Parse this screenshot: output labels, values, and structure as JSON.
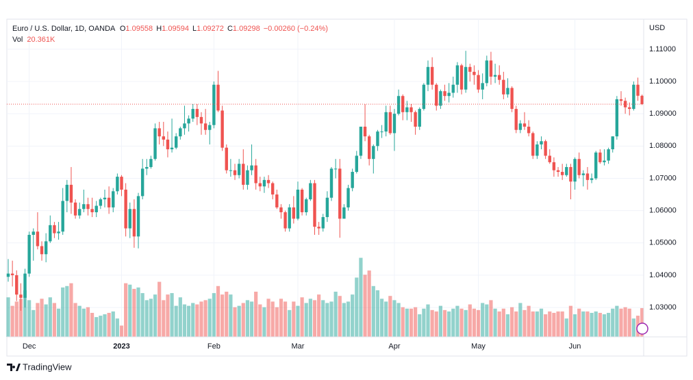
{
  "chart_data": {
    "type": "candlestick",
    "title": "Euro / U.S. Dollar, 1D, OANDA",
    "ohlc_labels": [
      "O",
      "H",
      "L",
      "C"
    ],
    "change_label": "−0.00260 (−0.24%)",
    "volume_title": "Vol",
    "volume_label": "20.361K",
    "currency": "USD",
    "brand": "TradingView",
    "up_color": "#26a69a",
    "down_color": "#ef5350",
    "grid": true,
    "ylim": [
      1.0209,
      1.1193
    ],
    "yticks": [
      {
        "value": 1.03,
        "label": "1.03000"
      },
      {
        "value": 1.04,
        "label": "1.04000"
      },
      {
        "value": 1.05,
        "label": "1.05000"
      },
      {
        "value": 1.06,
        "label": "1.06000"
      },
      {
        "value": 1.07,
        "label": "1.07000"
      },
      {
        "value": 1.08,
        "label": "1.08000"
      },
      {
        "value": 1.09,
        "label": "1.09000"
      },
      {
        "value": 1.1,
        "label": "1.10000"
      },
      {
        "value": 1.11,
        "label": "1.11000"
      }
    ],
    "categories": [
      null,
      null,
      null,
      null,
      null,
      "Dec",
      null,
      null,
      null,
      null,
      null,
      null,
      null,
      null,
      null,
      null,
      null,
      null,
      null,
      null,
      null,
      null,
      null,
      null,
      null,
      null,
      null,
      "2023",
      null,
      null,
      null,
      null,
      null,
      null,
      null,
      null,
      null,
      null,
      null,
      null,
      null,
      null,
      null,
      null,
      null,
      null,
      null,
      null,
      null,
      "Feb",
      null,
      null,
      null,
      null,
      null,
      null,
      null,
      null,
      null,
      null,
      null,
      null,
      null,
      null,
      null,
      null,
      null,
      null,
      null,
      "Mar",
      null,
      null,
      null,
      null,
      null,
      null,
      null,
      null,
      null,
      null,
      null,
      null,
      null,
      null,
      null,
      null,
      null,
      null,
      null,
      null,
      null,
      null,
      "Apr",
      null,
      null,
      null,
      null,
      null,
      null,
      null,
      null,
      null,
      null,
      null,
      null,
      null,
      null,
      null,
      null,
      null,
      null,
      null,
      "May",
      null,
      null,
      null,
      null,
      null,
      null,
      null,
      null,
      null,
      null,
      null,
      null,
      null,
      null,
      null,
      null,
      null,
      null,
      null,
      null,
      null,
      null,
      "Jun",
      null,
      null,
      null,
      null,
      null,
      null,
      null,
      null,
      null,
      null,
      null,
      null,
      null,
      null,
      null,
      null
    ],
    "open": [
      1.0395,
      1.0405,
      1.04,
      1.034,
      1.033,
      1.0405,
      1.0525,
      1.0535,
      1.049,
      1.0465,
      1.0505,
      1.0555,
      1.053,
      1.0535,
      1.063,
      1.068,
      1.0625,
      1.0585,
      1.0605,
      1.062,
      1.0605,
      1.0595,
      1.0615,
      1.0635,
      1.064,
      1.061,
      1.066,
      1.0705,
      1.0665,
      1.0545,
      1.0605,
      1.052,
      1.0645,
      1.073,
      1.0735,
      1.076,
      1.0855,
      1.083,
      1.082,
      1.079,
      1.0795,
      1.083,
      1.0855,
      1.087,
      1.0885,
      1.0915,
      1.089,
      1.087,
      1.085,
      1.0865,
      1.099,
      1.091,
      1.0795,
      1.0725,
      1.0725,
      1.071,
      1.0745,
      1.068,
      1.0725,
      1.074,
      1.0685,
      1.0675,
      1.0695,
      1.0685,
      1.065,
      1.061,
      1.0595,
      1.0545,
      1.061,
      1.0575,
      1.0665,
      1.0595,
      1.0635,
      1.0685,
      1.055,
      1.0545,
      1.058,
      1.064,
      1.073,
      1.073,
      1.0575,
      1.061,
      1.067,
      1.072,
      1.077,
      1.086,
      1.083,
      1.076,
      1.08,
      1.0845,
      1.0845,
      1.0905,
      1.084,
      1.09,
      1.0955,
      1.0905,
      1.092,
      1.0905,
      1.086,
      1.0915,
      1.099,
      1.1045,
      1.099,
      1.0925,
      1.097,
      1.0955,
      1.0965,
      1.099,
      1.105,
      1.0975,
      1.1045,
      1.103,
      1.102,
      1.0975,
      1.0995,
      1.1065,
      1.1015,
      1.102,
      1.1005,
      1.096,
      1.098,
      1.0915,
      1.085,
      1.087,
      1.086,
      1.084,
      1.077,
      1.0805,
      1.0815,
      1.077,
      1.075,
      1.0725,
      1.072,
      1.071,
      1.0735,
      1.069,
      1.076,
      1.071,
      1.0715,
      1.0695,
      1.07,
      1.078,
      1.075,
      1.0755,
      1.079,
      1.083,
      1.0945,
      1.094,
      1.092,
      1.0915,
      1.099,
      1.09558
    ],
    "high": [
      1.045,
      1.0445,
      1.0415,
      1.0375,
      1.042,
      1.0535,
      1.0545,
      1.0595,
      1.0505,
      1.053,
      1.0585,
      1.0565,
      1.0565,
      1.067,
      1.0695,
      1.0735,
      1.0635,
      1.0625,
      1.0665,
      1.064,
      1.064,
      1.063,
      1.064,
      1.0665,
      1.0675,
      1.067,
      1.0715,
      1.071,
      1.0685,
      1.0625,
      1.0635,
      1.0655,
      1.076,
      1.076,
      1.077,
      1.087,
      1.0875,
      1.0875,
      1.0845,
      1.0885,
      1.084,
      1.086,
      1.0925,
      1.0895,
      1.093,
      1.093,
      1.0905,
      1.0915,
      1.0875,
      1.1,
      1.1033,
      1.0925,
      1.0805,
      1.076,
      1.0745,
      1.076,
      1.079,
      1.074,
      1.0805,
      1.076,
      1.0705,
      1.0705,
      1.071,
      1.069,
      1.0665,
      1.062,
      1.06,
      1.062,
      1.0645,
      1.069,
      1.067,
      1.064,
      1.0695,
      1.0695,
      1.0565,
      1.059,
      1.066,
      1.0735,
      1.076,
      1.076,
      1.062,
      1.068,
      1.073,
      1.0785,
      1.086,
      1.093,
      1.0835,
      1.0805,
      1.085,
      1.0865,
      1.0925,
      1.0925,
      1.0915,
      1.0975,
      1.096,
      1.094,
      1.093,
      1.091,
      1.092,
      1.0995,
      1.1065,
      1.1075,
      1.0995,
      1.0975,
      1.099,
      1.0995,
      1.1015,
      1.106,
      1.1055,
      1.1095,
      1.1055,
      1.105,
      1.1035,
      1.1025,
      1.108,
      1.1092,
      1.1055,
      1.105,
      1.103,
      1.101,
      1.0985,
      1.0925,
      1.088,
      1.0905,
      1.088,
      1.0845,
      1.0815,
      1.083,
      1.082,
      1.079,
      1.0765,
      1.0735,
      1.0745,
      1.0745,
      1.0745,
      1.0765,
      1.078,
      1.0725,
      1.0735,
      1.0715,
      1.0785,
      1.079,
      1.079,
      1.0795,
      1.083,
      1.0955,
      1.097,
      1.095,
      1.0935,
      1.1,
      1.1012,
      1.09594
    ],
    "low": [
      1.038,
      1.0365,
      1.032,
      1.029,
      1.03,
      1.0395,
      1.0445,
      1.048,
      1.0445,
      1.044,
      1.05,
      1.0515,
      1.051,
      1.0525,
      1.0595,
      1.059,
      1.0575,
      1.0575,
      1.0595,
      1.0585,
      1.058,
      1.058,
      1.0605,
      1.061,
      1.059,
      1.0595,
      1.065,
      1.0645,
      1.052,
      1.0515,
      1.0485,
      1.0483,
      1.0635,
      1.071,
      1.073,
      1.0755,
      1.0805,
      1.08,
      1.0765,
      1.078,
      1.079,
      1.082,
      1.0835,
      1.0845,
      1.0875,
      1.0865,
      1.0835,
      1.0835,
      1.0805,
      1.0855,
      1.0905,
      1.0785,
      1.0715,
      1.0705,
      1.0695,
      1.07,
      1.0665,
      1.0665,
      1.071,
      1.0665,
      1.066,
      1.0655,
      1.067,
      1.0635,
      1.0605,
      1.0575,
      1.0535,
      1.0535,
      1.056,
      1.057,
      1.0585,
      1.0585,
      1.063,
      1.0525,
      1.0525,
      1.0535,
      1.0565,
      1.063,
      1.07,
      1.0516,
      1.0575,
      1.06,
      1.066,
      1.0715,
      1.076,
      1.0815,
      1.074,
      1.0715,
      1.0785,
      1.0825,
      1.083,
      1.0835,
      1.0785,
      1.0895,
      1.088,
      1.088,
      1.0875,
      1.0835,
      1.085,
      1.091,
      1.097,
      1.0975,
      1.091,
      1.0915,
      1.094,
      1.0935,
      1.095,
      1.0965,
      1.096,
      1.0965,
      1.1,
      1.099,
      1.0965,
      1.0945,
      1.0985,
      1.099,
      1.0995,
      1.099,
      1.0945,
      1.095,
      1.0905,
      1.084,
      1.084,
      1.085,
      1.083,
      1.076,
      1.076,
      1.079,
      1.076,
      1.0745,
      1.0705,
      1.0705,
      1.0695,
      1.0705,
      1.0635,
      1.0665,
      1.07,
      1.0675,
      1.0665,
      1.0685,
      1.0695,
      1.0745,
      1.074,
      1.0745,
      1.078,
      1.082,
      1.0925,
      1.09,
      1.0895,
      1.091,
      1.094,
      1.09272
    ],
    "close": [
      1.0405,
      1.04,
      1.034,
      1.033,
      1.0405,
      1.0525,
      1.0535,
      1.049,
      1.0465,
      1.0505,
      1.0555,
      1.053,
      1.0535,
      1.063,
      1.068,
      1.0625,
      1.0585,
      1.0605,
      1.062,
      1.0605,
      1.0595,
      1.0615,
      1.0635,
      1.064,
      1.061,
      1.066,
      1.0705,
      1.0665,
      1.0545,
      1.0605,
      1.052,
      1.0645,
      1.073,
      1.0735,
      1.076,
      1.0855,
      1.083,
      1.082,
      1.079,
      1.0795,
      1.083,
      1.0855,
      1.087,
      1.0885,
      1.0915,
      1.089,
      1.087,
      1.085,
      1.0865,
      1.099,
      1.091,
      1.0795,
      1.0725,
      1.0725,
      1.071,
      1.0745,
      1.068,
      1.0725,
      1.074,
      1.0685,
      1.0675,
      1.0695,
      1.0685,
      1.065,
      1.061,
      1.0595,
      1.0545,
      1.061,
      1.0575,
      1.0665,
      1.0595,
      1.0635,
      1.0685,
      1.055,
      1.0545,
      1.058,
      1.064,
      1.073,
      1.073,
      1.0575,
      1.061,
      1.067,
      1.072,
      1.077,
      1.086,
      1.083,
      1.076,
      1.08,
      1.0845,
      1.0845,
      1.0905,
      1.084,
      1.09,
      1.0955,
      1.0905,
      1.092,
      1.0905,
      1.086,
      1.0915,
      1.099,
      1.1045,
      1.099,
      1.0925,
      1.097,
      1.0955,
      1.0965,
      1.099,
      1.105,
      1.0975,
      1.1045,
      1.103,
      1.102,
      1.0975,
      1.0995,
      1.1065,
      1.1015,
      1.102,
      1.1005,
      1.096,
      1.098,
      1.0915,
      1.085,
      1.087,
      1.086,
      1.084,
      1.077,
      1.0805,
      1.0815,
      1.077,
      1.075,
      1.0725,
      1.072,
      1.071,
      1.0735,
      1.069,
      1.076,
      1.071,
      1.0715,
      1.0695,
      1.07,
      1.078,
      1.075,
      1.0755,
      1.079,
      1.083,
      1.0945,
      1.094,
      1.092,
      1.0915,
      1.099,
      1.09558,
      1.09298
    ],
    "volume": [
      28000,
      22000,
      25000,
      27000,
      33000,
      26000,
      19000,
      24000,
      27000,
      23000,
      28000,
      24000,
      20000,
      35000,
      36000,
      38000,
      24000,
      22000,
      20000,
      21000,
      17000,
      14000,
      15000,
      16000,
      17000,
      18000,
      13000,
      8000,
      38000,
      37000,
      34000,
      35000,
      31000,
      26000,
      27000,
      30000,
      39000,
      26000,
      30000,
      31000,
      22000,
      28000,
      23000,
      22000,
      24000,
      23000,
      25000,
      26000,
      27000,
      31000,
      36000,
      30000,
      32000,
      30000,
      21000,
      22000,
      24000,
      26000,
      25000,
      32000,
      23000,
      21000,
      27000,
      25000,
      21000,
      27000,
      25000,
      19000,
      25000,
      22000,
      28000,
      24000,
      27000,
      26000,
      30000,
      26000,
      24000,
      25000,
      32000,
      29000,
      24000,
      25000,
      30000,
      42000,
      56000,
      44000,
      47000,
      36000,
      33000,
      27000,
      25000,
      29000,
      26000,
      24000,
      21000,
      20000,
      20000,
      21000,
      16000,
      20000,
      23000,
      19000,
      18000,
      22000,
      19000,
      18000,
      20000,
      22000,
      20000,
      19000,
      23000,
      20000,
      19000,
      24000,
      23000,
      26000,
      20000,
      18000,
      20000,
      16000,
      21000,
      18000,
      24000,
      19000,
      22000,
      18000,
      18000,
      20000,
      16000,
      18000,
      17000,
      18000,
      18000,
      13000,
      22000,
      16000,
      20000,
      18000,
      18000,
      17000,
      18000,
      17000,
      16000,
      17000,
      20000,
      22000,
      20000,
      21000,
      20000,
      13000,
      15000,
      20361
    ]
  }
}
